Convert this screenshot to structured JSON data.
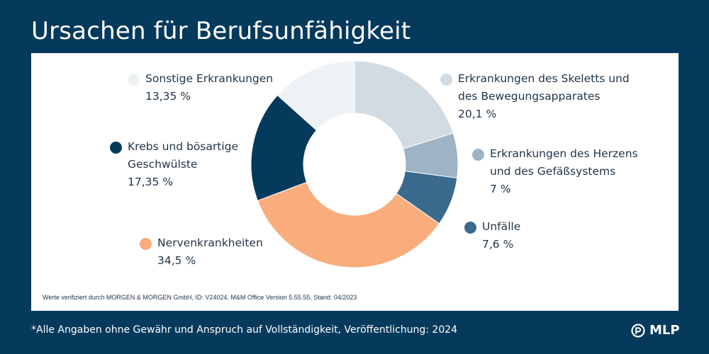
{
  "title": "Ursachen für Berufsunfähigkeit",
  "chart_data": {
    "type": "pie",
    "title": "Ursachen für Berufsunfähigkeit",
    "categories": [
      "Erkrankungen des Skeletts und des Bewegungsapparates",
      "Erkrankungen des Herzens und des Gefäßsystems",
      "Unfälle",
      "Nervenkrankheiten",
      "Krebs und bösartige Geschwülste",
      "Sonstige Erkrankungen"
    ],
    "values": [
      20.1,
      7,
      7.6,
      34.5,
      17.35,
      13.35
    ],
    "value_labels": [
      "20,1 %",
      "7 %",
      "7,6 %",
      "34,5 %",
      "17,35 %",
      "13,35 %"
    ],
    "colors": [
      "#d3dbe2",
      "#9cb4c4",
      "#3a6a8c",
      "#f9ad7c",
      "#063a5c",
      "#edf2f5"
    ],
    "donut": true
  },
  "legend": {
    "skeleton": {
      "label": "Erkrankungen des Skeletts und\ndes Bewegungsapparates",
      "value": "20,1 %"
    },
    "heart": {
      "label": "Erkrankungen des Herzens\nund des Gefäßsystems",
      "value": "7 %"
    },
    "accidents": {
      "label": "Unfälle",
      "value": "7,6 %"
    },
    "nerves": {
      "label": "Nervenkrankheiten",
      "value": "34,5 %"
    },
    "cancer": {
      "label": "Krebs und bösartige\nGeschwülste",
      "value": "17,35 %"
    },
    "other": {
      "label": "Sonstige Erkrankungen",
      "value": "13,35 %"
    }
  },
  "source_note": "Werte verifiziert durch MORGEN & MORGEN GmbH, ID: V24024, M&M Office Version 5.55.55, Stand: 04/2023",
  "footnote": "*Alle Angaben ohne Gewähr und Anspruch auf Vollständigkeit, Veröffentlichung: 2024",
  "brand": {
    "name": "MLP",
    "logo_icon": "mlp-logo-icon"
  }
}
